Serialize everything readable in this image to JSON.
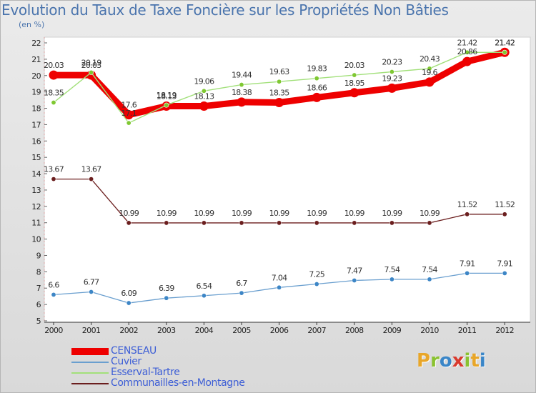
{
  "title": "Evolution du Taux de Taxe Foncière sur les Propriétés Non Bâties",
  "subtitle": "(en %)",
  "brand": "Proxiti",
  "brand_colors": [
    "#e8a629",
    "#8ac230",
    "#3a86c8",
    "#d93a2e",
    "#8ac230",
    "#e8a629",
    "#3a86c8"
  ],
  "chart_data": {
    "type": "line",
    "title": "Evolution du Taux de Taxe Foncière sur les Propriétés Non Bâties",
    "ylabel": "(en %)",
    "xlabel": "",
    "ylim": [
      5,
      22
    ],
    "yticks": [
      5,
      6,
      7,
      8,
      9,
      10,
      11,
      12,
      13,
      14,
      15,
      16,
      17,
      18,
      19,
      20,
      21,
      22
    ],
    "grid": false,
    "legend_position": "bottom-left",
    "categories": [
      "2000",
      "2001",
      "2002",
      "2003",
      "2004",
      "2005",
      "2006",
      "2007",
      "2008",
      "2009",
      "2010",
      "2011",
      "2012"
    ],
    "series": [
      {
        "name": "Communailles-en-Montagne",
        "color": "#6b1e1e",
        "marker_fill": "#6b1e1e",
        "values": [
          13.67,
          13.67,
          10.99,
          10.99,
          10.99,
          10.99,
          10.99,
          10.99,
          10.99,
          10.99,
          10.99,
          11.52,
          11.52
        ],
        "labels": [
          "13.67",
          "13.67",
          "10.99",
          "10.99",
          "10.99",
          "10.99",
          "10.99",
          "10.99",
          "10.99",
          "10.99",
          "10.99",
          "11.52",
          "11.52"
        ]
      },
      {
        "name": "Cuvier",
        "color": "#6a9fcf",
        "marker_fill": "#3d86c6",
        "values": [
          6.6,
          6.77,
          6.09,
          6.39,
          6.54,
          6.7,
          7.04,
          7.25,
          7.47,
          7.54,
          7.54,
          7.91,
          7.91
        ],
        "labels": [
          "6.6",
          "6.77",
          "6.09",
          "6.39",
          "6.54",
          "6.7",
          "7.04",
          "7.25",
          "7.47",
          "7.54",
          "7.54",
          "7.91",
          "7.91"
        ]
      },
      {
        "name": "CENSEAU",
        "color": "#ee0000",
        "marker_fill": "#ee0000",
        "values": [
          20.03,
          20.03,
          17.6,
          18.13,
          18.13,
          18.38,
          18.35,
          18.66,
          18.95,
          19.23,
          19.6,
          20.86,
          21.42
        ],
        "labels": [
          "20.03",
          "20.03",
          "17.6",
          "18.13",
          "18.13",
          "18.38",
          "18.35",
          "18.66",
          "18.95",
          "19.23",
          "19.6",
          "20.86",
          "21.42"
        ]
      },
      {
        "name": "Esserval-Tartre",
        "color": "#a2e07a",
        "marker_fill": "#7fc832",
        "values": [
          18.35,
          20.19,
          17.1,
          18.19,
          19.06,
          19.44,
          19.63,
          19.83,
          20.03,
          20.23,
          20.43,
          21.42,
          21.42
        ],
        "labels": [
          "18.35",
          "20.19",
          "17.1",
          "18.19",
          "19.06",
          "19.44",
          "19.63",
          "19.83",
          "20.03",
          "20.23",
          "20.43",
          "21.42",
          "21.42"
        ]
      }
    ]
  },
  "legend": [
    {
      "name": "CENSEAU",
      "color": "#ee0000"
    },
    {
      "name": "Cuvier",
      "color": "#6a9fcf"
    },
    {
      "name": "Esserval-Tartre",
      "color": "#a2e07a"
    },
    {
      "name": "Communailles-en-Montagne",
      "color": "#6b1e1e"
    }
  ]
}
